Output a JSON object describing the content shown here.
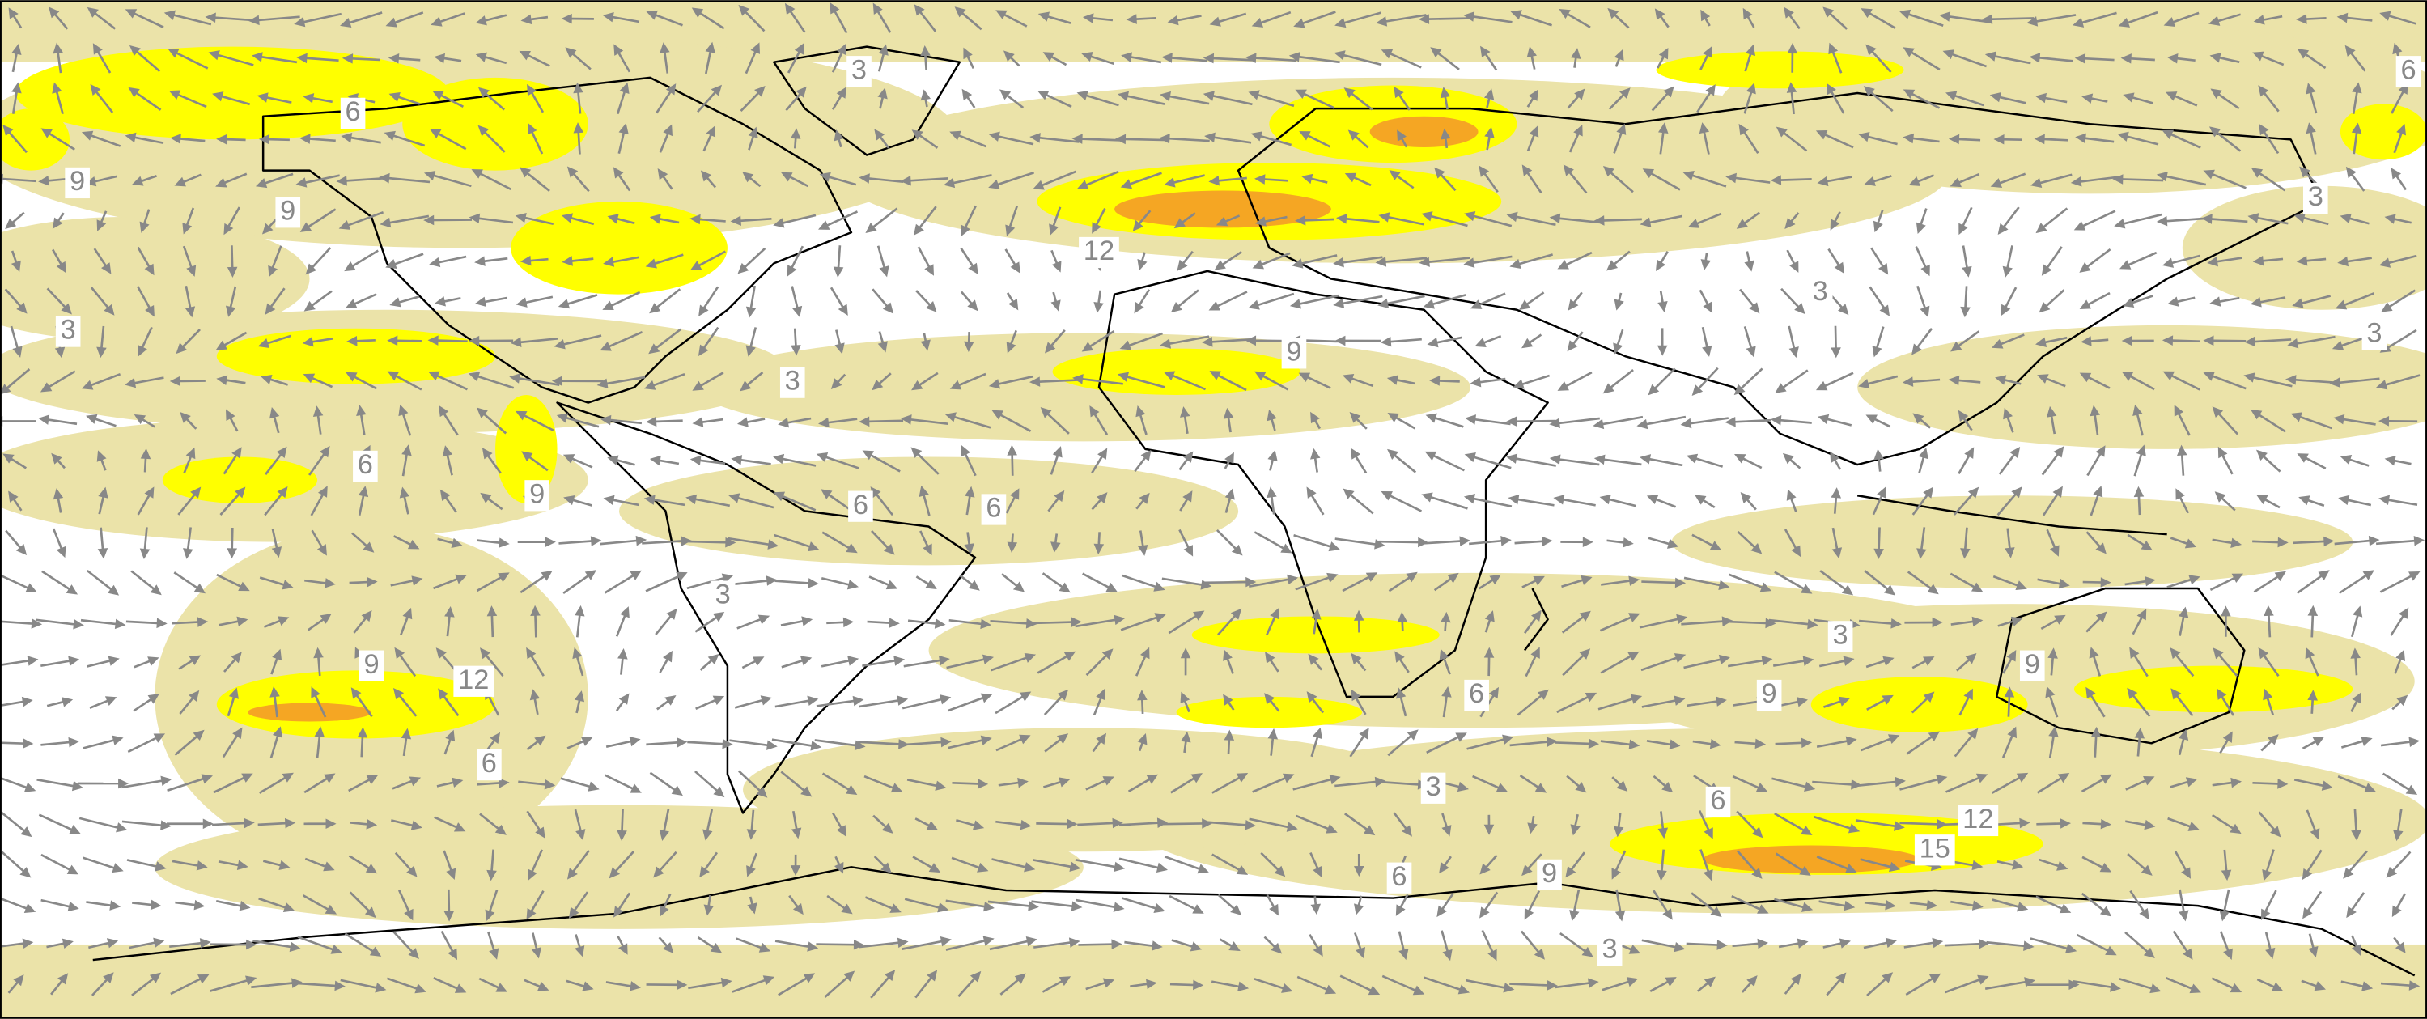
{
  "contour_labels": [
    3,
    6,
    9,
    9,
    12,
    3,
    3,
    9,
    6,
    9,
    6,
    6,
    3,
    9,
    12,
    6,
    3,
    3,
    3,
    6,
    3,
    9,
    9,
    6,
    3,
    6,
    12,
    15,
    6,
    9,
    3
  ]
}
